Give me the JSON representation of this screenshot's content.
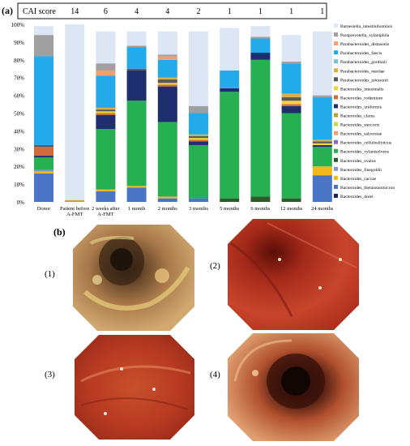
{
  "panel_a_label": "(a)",
  "panel_b_label": "(b)",
  "cai_header": "CAI score",
  "cai_scores": [
    "14",
    "6",
    "4",
    "4",
    "2",
    "1",
    "1",
    "1",
    "1"
  ],
  "endoscopy_images": [
    {
      "label": "(1)"
    },
    {
      "label": "(2)"
    },
    {
      "label": "(3)"
    },
    {
      "label": "(4)"
    }
  ],
  "chart_data": {
    "type": "bar",
    "stacked": true,
    "categories": [
      "Donor",
      "Patient before A-FMT",
      "2 weeks after A-FMT",
      "1 month",
      "2 months",
      "3 months",
      "5 months",
      "6 months",
      "12 months",
      "24 months"
    ],
    "y_ticks": [
      "0%",
      "10%",
      "20%",
      "30%",
      "40%",
      "50%",
      "60%",
      "70%",
      "80%",
      "90%",
      "100%"
    ],
    "ylim": [
      0,
      100
    ],
    "legend_position": "right",
    "series": [
      {
        "name": "Bacteroides_dorei",
        "color": "#1a2560",
        "values": [
          0,
          0,
          0,
          0,
          0,
          0,
          0,
          0,
          0,
          0
        ]
      },
      {
        "name": "Bacteroides_thetaiotaomicron",
        "color": "#4a74c4",
        "values": [
          16,
          0,
          6,
          8,
          2,
          2,
          0,
          0,
          0,
          15
        ]
      },
      {
        "name": "Bacteroides_caccae",
        "color": "#f2b81e",
        "values": [
          1,
          0,
          1,
          1,
          1,
          0,
          0,
          0,
          0,
          5
        ]
      },
      {
        "name": "Bacteroides_finegoldii",
        "color": "#7f97d6",
        "values": [
          1,
          0,
          0,
          0,
          0,
          0,
          0,
          0,
          0,
          0
        ]
      },
      {
        "name": "Bacteroides_ovatus",
        "color": "#2e5a2a",
        "values": [
          0,
          0,
          0,
          0,
          0,
          0,
          2,
          3,
          2,
          0
        ]
      },
      {
        "name": "Bacteroides_xylanisolvens",
        "color": "#26b052",
        "values": [
          7,
          0,
          34,
          48,
          42,
          30,
          60,
          77,
          48,
          11
        ]
      },
      {
        "name": "Bacteroides_cellulosilyticus",
        "color": "#8a6bbf",
        "values": [
          0,
          0,
          0,
          0,
          0,
          0,
          0,
          0,
          0,
          0
        ]
      },
      {
        "name": "Bacteroides_salyersiae",
        "color": "#e9a06a",
        "values": [
          0,
          0,
          0,
          0,
          0,
          0,
          0,
          0,
          0,
          0
        ]
      },
      {
        "name": "Bacteroides_stercoris",
        "color": "#c4d94a",
        "values": [
          0,
          0,
          0,
          0,
          0,
          0,
          0,
          0,
          0,
          0
        ]
      },
      {
        "name": "Bacteroides_clarus",
        "color": "#b8a040",
        "values": [
          0,
          0,
          0,
          0,
          0,
          0,
          0,
          0,
          0,
          0
        ]
      },
      {
        "name": "Bacteroides_uniformis",
        "color": "#1e2e6e",
        "values": [
          1,
          0,
          8,
          17,
          20,
          2,
          2,
          4,
          4,
          1
        ]
      },
      {
        "name": "Bacteroides_rodentium",
        "color": "#cf6a3a",
        "values": [
          5,
          0,
          1,
          0,
          1,
          1,
          0,
          0,
          1,
          0
        ]
      },
      {
        "name": "Bacteroides_intestinalis",
        "color": "#f3d23c",
        "values": [
          0,
          0,
          1,
          0,
          1,
          1,
          0,
          0,
          2,
          1
        ]
      },
      {
        "name": "Parabacteroides_johnsonii",
        "color": "#5a5a5a",
        "values": [
          1,
          0,
          1,
          1,
          2,
          1,
          0,
          0,
          2,
          1
        ]
      },
      {
        "name": "Parabacteroides_merdae",
        "color": "#d6b04a",
        "values": [
          0,
          0,
          1,
          0,
          1,
          1,
          0,
          0,
          2,
          1
        ]
      },
      {
        "name": "Parabacteroides_gordonii",
        "color": "#7ec0d0",
        "values": [
          0,
          0,
          0,
          0,
          0,
          0,
          0,
          0,
          0,
          0
        ]
      },
      {
        "name": "Parabacteroides_faecis",
        "color": "#22aaea",
        "values": [
          50,
          0,
          18,
          12,
          10,
          12,
          10,
          8,
          17,
          24
        ]
      },
      {
        "name": "Parabacteroides_distasonis",
        "color": "#f0a070",
        "values": [
          0,
          0,
          3,
          0,
          2,
          0,
          0,
          0,
          0,
          0
        ]
      },
      {
        "name": "Paraprevotella_xylaniphila",
        "color": "#a0a0a0",
        "values": [
          12,
          0,
          4,
          1,
          1,
          4,
          0,
          1,
          1,
          1
        ]
      },
      {
        "name": "Barnesiella_intestinihominis",
        "color": "#dce6f5",
        "values": [
          5,
          99,
          18,
          8,
          13,
          42,
          24,
          6,
          15,
          36
        ]
      }
    ],
    "patient_before_base": {
      "color": "#c8a040",
      "value": 1
    }
  }
}
